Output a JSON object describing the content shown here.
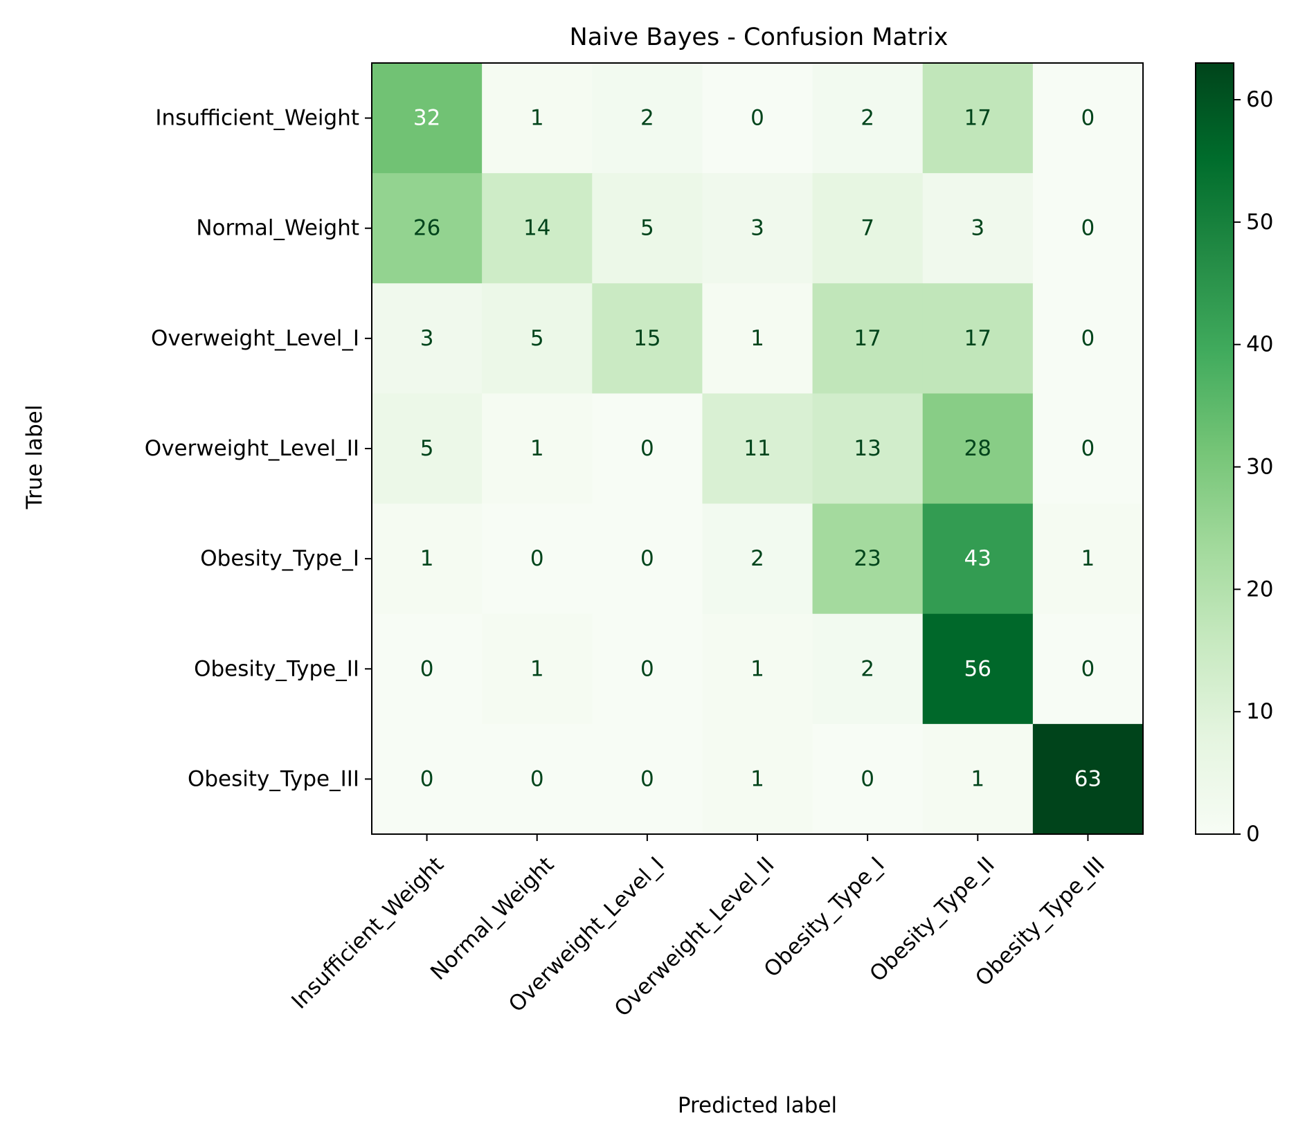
{
  "chart_data": {
    "type": "heatmap",
    "title": "Naive Bayes - Confusion Matrix",
    "xlabel": "Predicted label",
    "ylabel": "True label",
    "x_categories": [
      "Insufficient_Weight",
      "Normal_Weight",
      "Overweight_Level_I",
      "Overweight_Level_II",
      "Obesity_Type_I",
      "Obesity_Type_II",
      "Obesity_Type_III"
    ],
    "y_categories": [
      "Insufficient_Weight",
      "Normal_Weight",
      "Overweight_Level_I",
      "Overweight_Level_II",
      "Obesity_Type_I",
      "Obesity_Type_II",
      "Obesity_Type_III"
    ],
    "matrix": [
      [
        32,
        1,
        2,
        0,
        2,
        17,
        0
      ],
      [
        26,
        14,
        5,
        3,
        7,
        3,
        0
      ],
      [
        3,
        5,
        15,
        1,
        17,
        17,
        0
      ],
      [
        5,
        1,
        0,
        11,
        13,
        28,
        0
      ],
      [
        1,
        0,
        0,
        2,
        23,
        43,
        1
      ],
      [
        0,
        1,
        0,
        1,
        2,
        56,
        0
      ],
      [
        0,
        0,
        0,
        1,
        0,
        1,
        63
      ]
    ],
    "colormap": "Greens",
    "colorbar": {
      "range": [
        0,
        63
      ],
      "ticks": [
        0,
        10,
        20,
        30,
        40,
        50,
        60
      ]
    },
    "grid": false,
    "colors": {
      "low": "#f7fcf5",
      "high": "#00441b",
      "text_light": "#ffffff",
      "text_dark": "#00441b"
    }
  }
}
